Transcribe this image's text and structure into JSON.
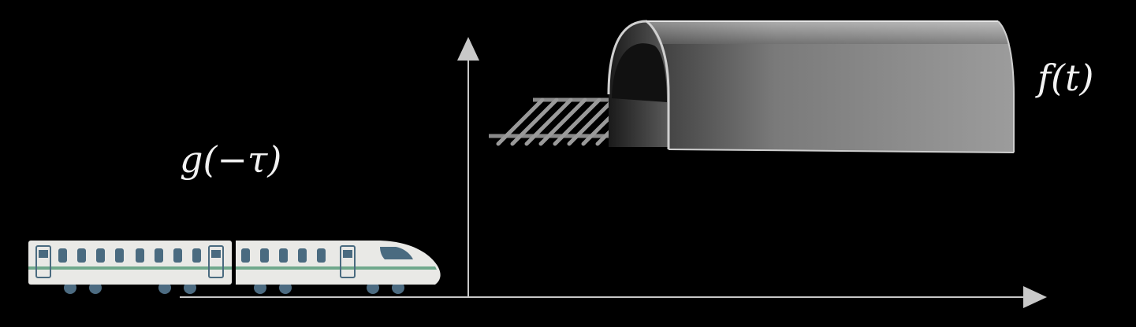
{
  "labels": {
    "g": "g(−τ)",
    "f": "f(t)"
  },
  "colors": {
    "background": "#000000",
    "axis": "#c8c8c8",
    "tunnel_dark": "#333333",
    "tunnel_light": "#9a9a9a",
    "rail": "#8a8a8a",
    "train_body": "#e9e9e6",
    "train_window": "#4a6b80",
    "train_stripe": "#6fa88c",
    "train_wheel": "#4d6c82"
  },
  "icons": {
    "train": "train-icon",
    "tunnel": "tunnel-icon",
    "track": "railroad-track-icon"
  }
}
